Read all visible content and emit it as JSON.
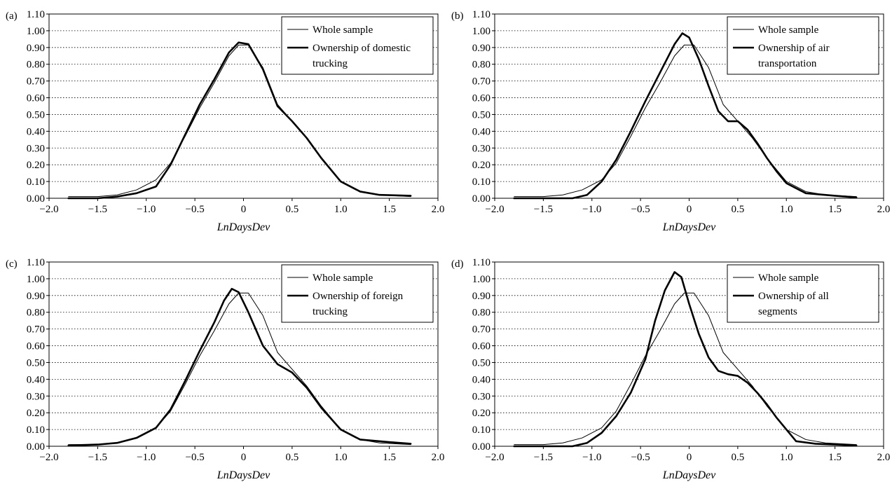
{
  "chart_data": [
    {
      "panel_label": "(a)",
      "type": "line",
      "xlabel": "LnDaysDev",
      "ylabel": "",
      "xlim": [
        -2.0,
        2.0
      ],
      "ylim": [
        0.0,
        1.1
      ],
      "xticks": [
        "−2.0",
        "−1.5",
        "−1.0",
        "−0.5",
        "0",
        "0.5",
        "1.0",
        "1.5",
        "2.0"
      ],
      "yticks": [
        "0.00",
        "0.10",
        "0.20",
        "0.30",
        "0.40",
        "0.50",
        "0.60",
        "0.70",
        "0.80",
        "0.90",
        "1.00",
        "1.10"
      ],
      "grid": "horizontal dotted",
      "legend_position": "top-right",
      "series": [
        {
          "name": "Whole sample",
          "style": "thin",
          "x": [
            -1.8,
            -1.5,
            -1.3,
            -1.1,
            -0.9,
            -0.75,
            -0.6,
            -0.45,
            -0.3,
            -0.15,
            -0.05,
            0.05,
            0.2,
            0.35,
            0.5,
            0.65,
            0.8,
            1.0,
            1.2,
            1.4,
            1.72
          ],
          "y": [
            0.01,
            0.01,
            0.02,
            0.05,
            0.11,
            0.21,
            0.37,
            0.54,
            0.69,
            0.85,
            0.915,
            0.915,
            0.78,
            0.56,
            0.46,
            0.36,
            0.24,
            0.1,
            0.04,
            0.02,
            0.01
          ]
        },
        {
          "name": "Ownership of domestic trucking",
          "style": "thick",
          "x": [
            -1.8,
            -1.5,
            -1.3,
            -1.1,
            -0.9,
            -0.75,
            -0.6,
            -0.45,
            -0.3,
            -0.15,
            -0.05,
            0.05,
            0.2,
            0.35,
            0.5,
            0.65,
            0.8,
            1.0,
            1.2,
            1.4,
            1.72
          ],
          "y": [
            0.0,
            0.0,
            0.01,
            0.03,
            0.07,
            0.2,
            0.38,
            0.56,
            0.71,
            0.87,
            0.93,
            0.92,
            0.77,
            0.55,
            0.46,
            0.36,
            0.24,
            0.1,
            0.04,
            0.02,
            0.015
          ]
        }
      ],
      "legend": {
        "whole": "Whole sample",
        "owner_l1": "Ownership of domestic",
        "owner_l2": "trucking"
      }
    },
    {
      "panel_label": "(b)",
      "type": "line",
      "xlabel": "LnDaysDev",
      "ylabel": "",
      "xlim": [
        -2.0,
        2.0
      ],
      "ylim": [
        0.0,
        1.1
      ],
      "xticks": [
        "−2.0",
        "−1.5",
        "−1.0",
        "−0.5",
        "0",
        "0.5",
        "1.0",
        "1.5",
        "2.0"
      ],
      "yticks": [
        "0.00",
        "0.10",
        "0.20",
        "0.30",
        "0.40",
        "0.50",
        "0.60",
        "0.70",
        "0.80",
        "0.90",
        "1.00",
        "1.10"
      ],
      "grid": "horizontal dotted",
      "legend_position": "top-right",
      "series": [
        {
          "name": "Whole sample",
          "style": "thin",
          "x": [
            -1.8,
            -1.5,
            -1.3,
            -1.1,
            -0.9,
            -0.75,
            -0.6,
            -0.45,
            -0.3,
            -0.15,
            -0.05,
            0.05,
            0.2,
            0.35,
            0.5,
            0.65,
            0.8,
            1.0,
            1.2,
            1.4,
            1.72
          ],
          "y": [
            0.01,
            0.01,
            0.02,
            0.05,
            0.11,
            0.21,
            0.37,
            0.54,
            0.69,
            0.85,
            0.915,
            0.915,
            0.78,
            0.56,
            0.46,
            0.36,
            0.24,
            0.1,
            0.04,
            0.02,
            0.01
          ]
        },
        {
          "name": "Ownership of air transportation",
          "style": "thick",
          "x": [
            -1.8,
            -1.4,
            -1.2,
            -1.05,
            -0.9,
            -0.75,
            -0.6,
            -0.45,
            -0.3,
            -0.15,
            -0.07,
            0.0,
            0.1,
            0.2,
            0.3,
            0.4,
            0.5,
            0.6,
            0.7,
            0.8,
            0.9,
            1.0,
            1.2,
            1.5,
            1.72
          ],
          "y": [
            0.0,
            0.0,
            0.0,
            0.02,
            0.1,
            0.23,
            0.4,
            0.58,
            0.75,
            0.92,
            0.985,
            0.96,
            0.83,
            0.67,
            0.52,
            0.46,
            0.46,
            0.41,
            0.33,
            0.24,
            0.16,
            0.09,
            0.03,
            0.015,
            0.005
          ]
        }
      ],
      "legend": {
        "whole": "Whole sample",
        "owner_l1": "Ownership of air",
        "owner_l2": "transportation"
      }
    },
    {
      "panel_label": "(c)",
      "type": "line",
      "xlabel": "LnDaysDev",
      "ylabel": "",
      "xlim": [
        -2.0,
        2.0
      ],
      "ylim": [
        0.0,
        1.1
      ],
      "xticks": [
        "−2.0",
        "−1.5",
        "−1.0",
        "−0.5",
        "0",
        "0.5",
        "1.0",
        "1.5",
        "2.0"
      ],
      "yticks": [
        "0.00",
        "0.10",
        "0.20",
        "0.30",
        "0.40",
        "0.50",
        "0.60",
        "0.70",
        "0.80",
        "0.90",
        "1.00",
        "1.10"
      ],
      "grid": "horizontal dotted",
      "legend_position": "top-right",
      "series": [
        {
          "name": "Whole sample",
          "style": "thin",
          "x": [
            -1.8,
            -1.5,
            -1.3,
            -1.1,
            -0.9,
            -0.75,
            -0.6,
            -0.45,
            -0.3,
            -0.15,
            -0.05,
            0.05,
            0.2,
            0.35,
            0.5,
            0.65,
            0.8,
            1.0,
            1.2,
            1.4,
            1.72
          ],
          "y": [
            0.01,
            0.01,
            0.02,
            0.05,
            0.11,
            0.21,
            0.37,
            0.54,
            0.69,
            0.85,
            0.915,
            0.915,
            0.78,
            0.56,
            0.46,
            0.36,
            0.24,
            0.1,
            0.04,
            0.02,
            0.01
          ]
        },
        {
          "name": "Ownership of foreign trucking",
          "style": "thick",
          "x": [
            -1.8,
            -1.5,
            -1.3,
            -1.1,
            -0.9,
            -0.75,
            -0.6,
            -0.45,
            -0.3,
            -0.2,
            -0.12,
            -0.05,
            0.05,
            0.2,
            0.35,
            0.5,
            0.65,
            0.8,
            1.0,
            1.2,
            1.5,
            1.72
          ],
          "y": [
            0.005,
            0.01,
            0.02,
            0.05,
            0.11,
            0.22,
            0.39,
            0.57,
            0.74,
            0.87,
            0.94,
            0.92,
            0.8,
            0.6,
            0.49,
            0.44,
            0.35,
            0.23,
            0.1,
            0.04,
            0.025,
            0.015
          ]
        }
      ],
      "legend": {
        "whole": "Whole sample",
        "owner_l1": "Ownership of foreign",
        "owner_l2": "trucking"
      }
    },
    {
      "panel_label": "(d)",
      "type": "line",
      "xlabel": "LnDaysDev",
      "ylabel": "",
      "xlim": [
        -2.0,
        2.0
      ],
      "ylim": [
        0.0,
        1.1
      ],
      "xticks": [
        "−2.0",
        "−1.5",
        "−1.0",
        "−0.5",
        "0",
        "0.5",
        "1.0",
        "1.5",
        "2.0"
      ],
      "yticks": [
        "0.00",
        "0.10",
        "0.20",
        "0.30",
        "0.40",
        "0.50",
        "0.60",
        "0.70",
        "0.80",
        "0.90",
        "1.00",
        "1.10"
      ],
      "grid": "horizontal dotted",
      "legend_position": "top-right",
      "series": [
        {
          "name": "Whole sample",
          "style": "thin",
          "x": [
            -1.8,
            -1.5,
            -1.3,
            -1.1,
            -0.9,
            -0.75,
            -0.6,
            -0.45,
            -0.3,
            -0.15,
            -0.05,
            0.05,
            0.2,
            0.35,
            0.5,
            0.65,
            0.8,
            1.0,
            1.2,
            1.4,
            1.72
          ],
          "y": [
            0.01,
            0.01,
            0.02,
            0.05,
            0.11,
            0.21,
            0.37,
            0.54,
            0.69,
            0.85,
            0.915,
            0.915,
            0.78,
            0.56,
            0.46,
            0.36,
            0.24,
            0.1,
            0.04,
            0.02,
            0.01
          ]
        },
        {
          "name": "Ownership of all segments",
          "style": "thick",
          "x": [
            -1.8,
            -1.4,
            -1.2,
            -1.05,
            -0.9,
            -0.75,
            -0.6,
            -0.45,
            -0.35,
            -0.25,
            -0.15,
            -0.08,
            0.0,
            0.1,
            0.2,
            0.3,
            0.4,
            0.5,
            0.6,
            0.7,
            0.8,
            0.9,
            1.0,
            1.1,
            1.3,
            1.5,
            1.72
          ],
          "y": [
            0.0,
            0.0,
            0.0,
            0.02,
            0.08,
            0.18,
            0.32,
            0.52,
            0.75,
            0.93,
            1.04,
            1.01,
            0.85,
            0.67,
            0.53,
            0.45,
            0.43,
            0.42,
            0.38,
            0.32,
            0.25,
            0.17,
            0.1,
            0.03,
            0.015,
            0.01,
            0.005
          ]
        }
      ],
      "legend": {
        "whole": "Whole sample",
        "owner_l1": "Ownership of all",
        "owner_l2": "segments"
      }
    }
  ]
}
